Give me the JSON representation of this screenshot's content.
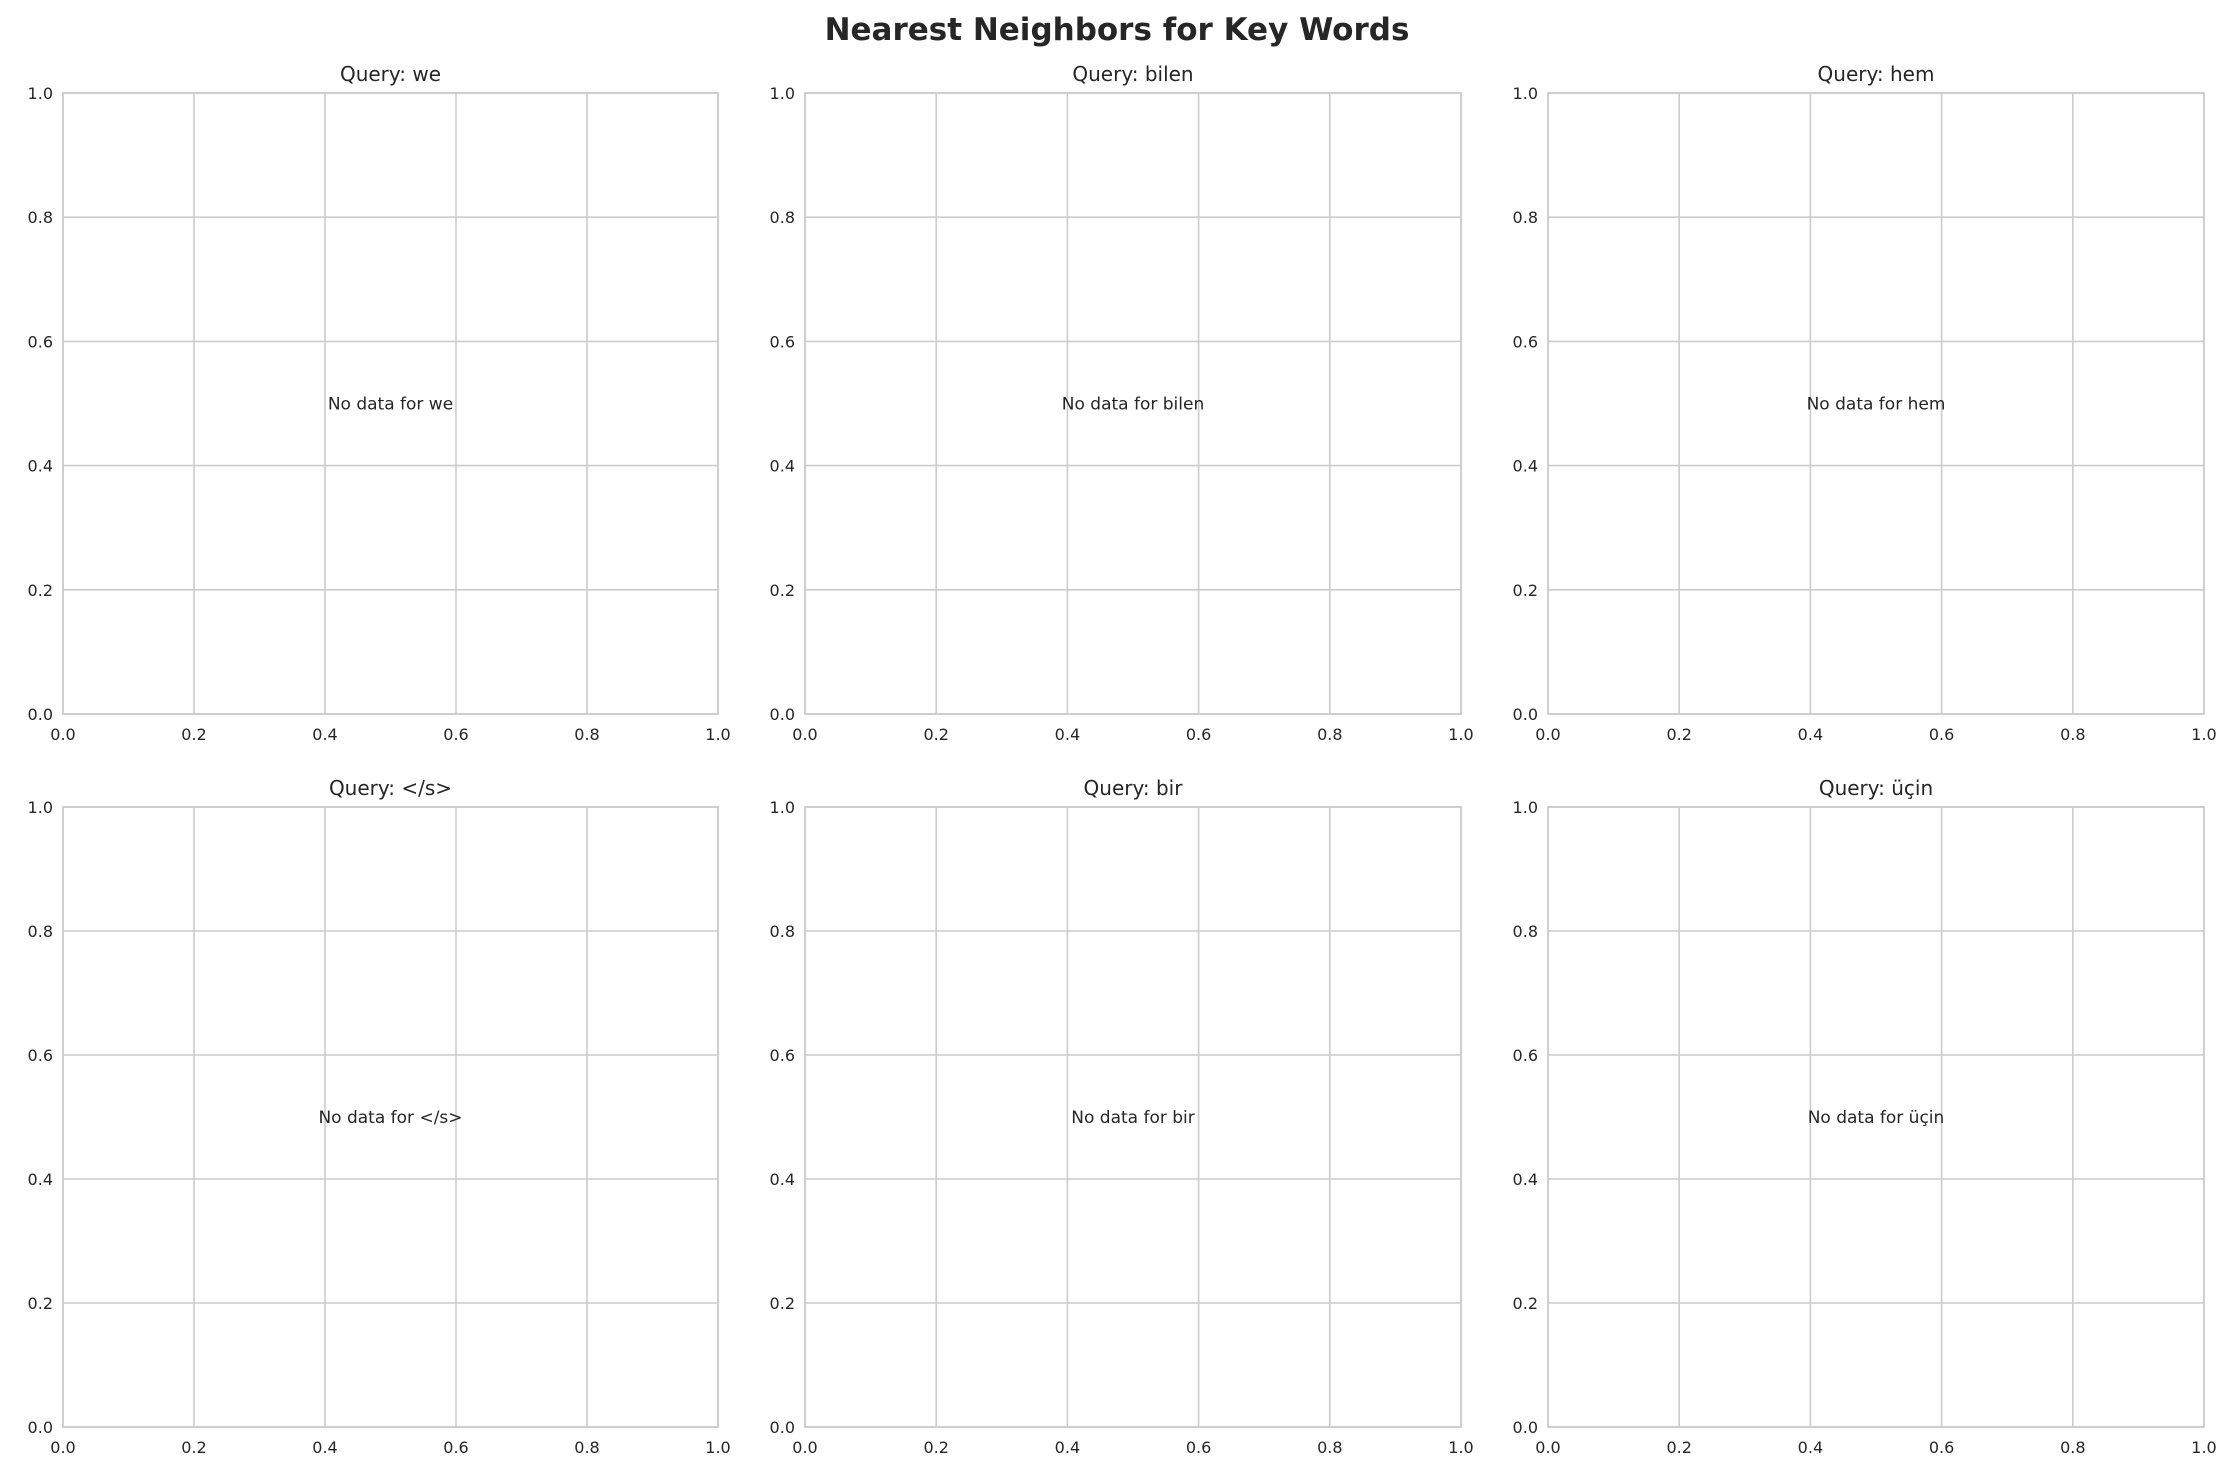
{
  "chart_data": {
    "title": "Nearest Neighbors for Key Words",
    "grid": true,
    "colors": {
      "grid": "#cccccc",
      "text": "#262626",
      "spine": "#cccccc"
    },
    "panels": [
      {
        "type": "scatter",
        "title": "Query: we",
        "message": "No data for we",
        "xlim": [
          0,
          1
        ],
        "ylim": [
          0,
          1
        ],
        "xticks": [
          "0.0",
          "0.2",
          "0.4",
          "0.6",
          "0.8",
          "1.0"
        ],
        "yticks": [
          "0.0",
          "0.2",
          "0.4",
          "0.6",
          "0.8",
          "1.0"
        ],
        "points": []
      },
      {
        "type": "scatter",
        "title": "Query: bilen",
        "message": "No data for bilen",
        "xlim": [
          0,
          1
        ],
        "ylim": [
          0,
          1
        ],
        "xticks": [
          "0.0",
          "0.2",
          "0.4",
          "0.6",
          "0.8",
          "1.0"
        ],
        "yticks": [
          "0.0",
          "0.2",
          "0.4",
          "0.6",
          "0.8",
          "1.0"
        ],
        "points": []
      },
      {
        "type": "scatter",
        "title": "Query: hem",
        "message": "No data for hem",
        "xlim": [
          0,
          1
        ],
        "ylim": [
          0,
          1
        ],
        "xticks": [
          "0.0",
          "0.2",
          "0.4",
          "0.6",
          "0.8",
          "1.0"
        ],
        "yticks": [
          "0.0",
          "0.2",
          "0.4",
          "0.6",
          "0.8",
          "1.0"
        ],
        "points": []
      },
      {
        "type": "scatter",
        "title": "Query: </s>",
        "message": "No data for </s>",
        "xlim": [
          0,
          1
        ],
        "ylim": [
          0,
          1
        ],
        "xticks": [
          "0.0",
          "0.2",
          "0.4",
          "0.6",
          "0.8",
          "1.0"
        ],
        "yticks": [
          "0.0",
          "0.2",
          "0.4",
          "0.6",
          "0.8",
          "1.0"
        ],
        "points": []
      },
      {
        "type": "scatter",
        "title": "Query: bir",
        "message": "No data for bir",
        "xlim": [
          0,
          1
        ],
        "ylim": [
          0,
          1
        ],
        "xticks": [
          "0.0",
          "0.2",
          "0.4",
          "0.6",
          "0.8",
          "1.0"
        ],
        "yticks": [
          "0.0",
          "0.2",
          "0.4",
          "0.6",
          "0.8",
          "1.0"
        ],
        "points": []
      },
      {
        "type": "scatter",
        "title": "Query: üçin",
        "message": "No data for üçin",
        "xlim": [
          0,
          1
        ],
        "ylim": [
          0,
          1
        ],
        "xticks": [
          "0.0",
          "0.2",
          "0.4",
          "0.6",
          "0.8",
          "1.0"
        ],
        "yticks": [
          "0.0",
          "0.2",
          "0.4",
          "0.6",
          "0.8",
          "1.0"
        ],
        "points": []
      }
    ]
  }
}
